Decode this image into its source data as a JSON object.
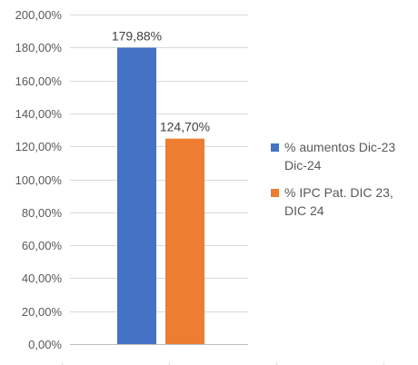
{
  "chart_data": {
    "type": "bar",
    "categories": [
      ""
    ],
    "series": [
      {
        "name": "% aumentos Dic-23 Dic-24",
        "values": [
          179.88
        ],
        "label": "179,88%",
        "color": "#4472C4"
      },
      {
        "name": "% IPC Pat. DIC 23, DIC 24",
        "values": [
          124.7
        ],
        "label": "124,70%",
        "color": "#ED7D31"
      }
    ],
    "ylim": [
      0,
      200
    ],
    "yticks": [
      0,
      20,
      40,
      60,
      80,
      100,
      120,
      140,
      160,
      180,
      200
    ],
    "ytick_labels": [
      "0,00%",
      "20,00%",
      "40,00%",
      "60,00%",
      "80,00%",
      "100,00%",
      "120,00%",
      "140,00%",
      "160,00%",
      "180,00%",
      "200,00%"
    ],
    "title": "",
    "xlabel": "",
    "ylabel": "",
    "grid": true,
    "legend_position": "right"
  }
}
